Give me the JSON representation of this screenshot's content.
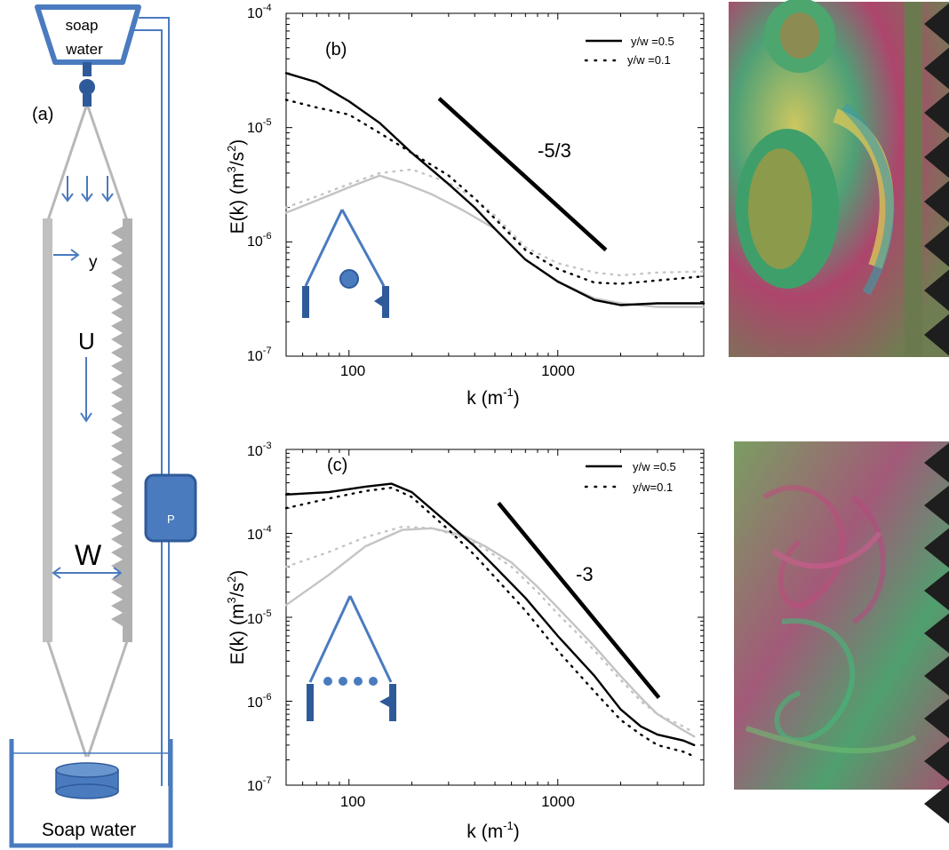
{
  "apparatus": {
    "panel_label": "(a)",
    "reservoir_top": [
      "soap",
      "water"
    ],
    "y_label": "y",
    "u_label": "U",
    "w_label": "W",
    "pump_label": "P",
    "reservoir_bottom": "Soap water"
  },
  "chart_data": [
    {
      "type": "line",
      "panel": "(b)",
      "xlabel": "k (m",
      "xlabel_sup": "-1",
      "ylabel": "E(k) (m",
      "ylabel_sup": "3",
      "ylabel_mid": "/s",
      "ylabel_sup2": "2",
      "ylabel_end": ")",
      "xscale": "log",
      "yscale": "log",
      "xlim": [
        50,
        5000
      ],
      "ylim": [
        1e-07,
        0.0001
      ],
      "xticks": [
        "100",
        "1000"
      ],
      "yticks": [
        {
          "base": "10",
          "exp": "-7"
        },
        {
          "base": "10",
          "exp": "-6"
        },
        {
          "base": "10",
          "exp": "-5"
        },
        {
          "base": "10",
          "exp": "-4"
        }
      ],
      "legend_position": "top-right",
      "legend": [
        "y/w =0.5",
        "y/w =0.1"
      ],
      "slope_label": "-5/3",
      "slope_line": {
        "x": [
          270,
          1700
        ],
        "y": [
          1.8e-05,
          8.5e-07
        ]
      },
      "series": [
        {
          "name": "y/w =0.5",
          "color": "#000000",
          "style": "solid",
          "x": [
            50,
            70,
            100,
            140,
            200,
            300,
            400,
            500,
            700,
            1000,
            1500,
            2000,
            3000,
            5000
          ],
          "y": [
            3e-05,
            2.5e-05,
            1.7e-05,
            1.1e-05,
            6e-06,
            3.2e-06,
            2e-06,
            1.3e-06,
            7e-07,
            4.5e-07,
            3.1e-07,
            2.8e-07,
            2.9e-07,
            2.9e-07
          ]
        },
        {
          "name": "y/w =0.1",
          "color": "#000000",
          "style": "dotted",
          "x": [
            50,
            70,
            100,
            140,
            200,
            300,
            400,
            500,
            700,
            1000,
            1500,
            2000,
            3000,
            5000
          ],
          "y": [
            1.75e-05,
            1.5e-05,
            1.3e-05,
            9e-06,
            6e-06,
            3.8e-06,
            2.4e-06,
            1.6e-06,
            8.5e-07,
            5.8e-07,
            4.4e-07,
            4.3e-07,
            4.6e-07,
            5e-07
          ]
        },
        {
          "color": "#c4c4c4",
          "style": "solid",
          "x": [
            50,
            70,
            100,
            140,
            180,
            250,
            350,
            500,
            700,
            1000,
            1500,
            2000,
            3000,
            5000
          ],
          "y": [
            1.8e-06,
            2.3e-06,
            3e-06,
            3.8e-06,
            3.3e-06,
            2.6e-06,
            1.9e-06,
            1.3e-06,
            7e-07,
            4.5e-07,
            3.2e-07,
            2.9e-07,
            2.7e-07,
            2.7e-07
          ]
        },
        {
          "color": "#c4c4c4",
          "style": "dotted",
          "x": [
            50,
            70,
            100,
            140,
            200,
            300,
            400,
            500,
            700,
            1000,
            1500,
            2000,
            3000,
            5000
          ],
          "y": [
            2e-06,
            2.5e-06,
            3.2e-06,
            4e-06,
            4.3e-06,
            3.3e-06,
            2.4e-06,
            1.7e-06,
            9e-07,
            6.5e-07,
            5.4e-07,
            5.1e-07,
            5.4e-07,
            5.5e-07
          ]
        }
      ]
    },
    {
      "type": "line",
      "panel": "(c)",
      "xlabel": "k (m",
      "xlabel_sup": "-1",
      "ylabel": "E(k) (m",
      "ylabel_sup": "3",
      "ylabel_mid": "/s",
      "ylabel_sup2": "2",
      "ylabel_end": ")",
      "xscale": "log",
      "yscale": "log",
      "xlim": [
        50,
        5000
      ],
      "ylim": [
        1e-07,
        0.001
      ],
      "xticks": [
        "100",
        "1000"
      ],
      "yticks": [
        {
          "base": "10",
          "exp": "-7"
        },
        {
          "base": "10",
          "exp": "-6"
        },
        {
          "base": "10",
          "exp": "-5"
        },
        {
          "base": "10",
          "exp": "-4"
        },
        {
          "base": "10",
          "exp": "-3"
        }
      ],
      "legend_position": "top-right",
      "legend": [
        "y/w =0.5",
        "y/w=0.1"
      ],
      "slope_label": "-3",
      "slope_line": {
        "x": [
          520,
          3050
        ],
        "y": [
          0.00023,
          1.1e-06
        ]
      },
      "series": [
        {
          "name": "y/w =0.5",
          "color": "#000000",
          "style": "solid",
          "x": [
            50,
            80,
            120,
            160,
            200,
            300,
            400,
            500,
            700,
            1000,
            1500,
            2000,
            2500,
            3000,
            4000,
            4500
          ],
          "y": [
            0.00029,
            0.00031,
            0.00036,
            0.00039,
            0.00031,
            0.00013,
            7e-05,
            4e-05,
            1.7e-05,
            6e-06,
            2e-06,
            8e-07,
            5e-07,
            4e-07,
            3.4e-07,
            3e-07
          ]
        },
        {
          "name": "y/w=0.1",
          "color": "#000000",
          "style": "dotted",
          "x": [
            50,
            80,
            120,
            160,
            200,
            300,
            400,
            500,
            700,
            1000,
            1500,
            2000,
            2500,
            3000,
            4000,
            4500
          ],
          "y": [
            0.0002,
            0.00026,
            0.00032,
            0.00035,
            0.00027,
            0.00011,
            5.5e-05,
            3e-05,
            1.2e-05,
            4e-06,
            1.3e-06,
            6e-07,
            4e-07,
            3e-07,
            2.5e-07,
            2.2e-07
          ]
        },
        {
          "color": "#c4c4c4",
          "style": "solid",
          "x": [
            50,
            80,
            120,
            180,
            250,
            350,
            450,
            600,
            800,
            1000,
            1500,
            2000,
            2500,
            3000,
            4000,
            4500
          ],
          "y": [
            1.4e-05,
            3.2e-05,
            7e-05,
            0.00011,
            0.000115,
            9.5e-05,
            7e-05,
            4.5e-05,
            2.3e-05,
            1.3e-05,
            4.5e-06,
            2e-06,
            1.1e-06,
            7e-07,
            4.5e-07,
            3.8e-07
          ]
        },
        {
          "color": "#c4c4c4",
          "style": "dotted",
          "x": [
            50,
            80,
            120,
            180,
            250,
            350,
            450,
            600,
            800,
            1000,
            1500,
            2000,
            2500,
            3000,
            4000,
            4500
          ],
          "y": [
            4e-05,
            6e-05,
            9e-05,
            0.00012,
            0.000115,
            9e-05,
            6.5e-05,
            4e-05,
            2e-05,
            1.1e-05,
            4e-06,
            1.8e-06,
            1e-06,
            7e-07,
            5e-07,
            4.2e-07
          ]
        }
      ]
    }
  ],
  "colors": {
    "apparatus_blue": "#4a7bbf",
    "apparatus_dark": "#2f5a9a",
    "frame_gray": "#b8b8b8",
    "reference_gray": "#c4c4c4"
  }
}
